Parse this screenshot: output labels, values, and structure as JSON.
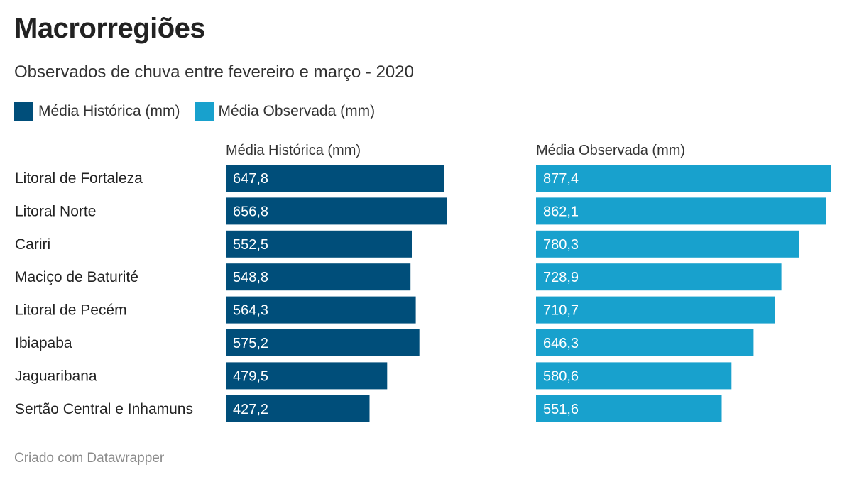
{
  "header": {
    "title": "Macrorregiões",
    "subtitle": "Observados de chuva entre fevereiro e março - 2020"
  },
  "legend": [
    {
      "label": "Média Histórica (mm)",
      "color": "#004e7a"
    },
    {
      "label": "Média Observada (mm)",
      "color": "#18a1cd"
    }
  ],
  "footer": {
    "credit": "Criado com Datawrapper"
  },
  "chart_data": {
    "type": "bar",
    "orientation": "horizontal",
    "categories": [
      "Litoral de Fortaleza",
      "Litoral Norte",
      "Cariri",
      "Maciço de Baturité",
      "Litoral de Pecém",
      "Ibiapaba",
      "Jaguaribana",
      "Sertão Central e Inhamuns"
    ],
    "series": [
      {
        "name": "Média Histórica (mm)",
        "color": "#004e7a",
        "values": [
          647.8,
          656.8,
          552.5,
          548.8,
          564.3,
          575.2,
          479.5,
          427.2
        ],
        "labels": [
          "647,8",
          "656,8",
          "552,5",
          "548,8",
          "564,3",
          "575,2",
          "479,5",
          "427,2"
        ]
      },
      {
        "name": "Média Observada (mm)",
        "color": "#18a1cd",
        "values": [
          877.4,
          862.1,
          780.3,
          728.9,
          710.7,
          646.3,
          580.6,
          551.6
        ],
        "labels": [
          "877,4",
          "862,1",
          "780,3",
          "728,9",
          "710,7",
          "646,3",
          "580,6",
          "551,6"
        ]
      }
    ],
    "xlim": [
      0,
      877.4
    ],
    "grid": false,
    "legend_position": "top-left"
  }
}
